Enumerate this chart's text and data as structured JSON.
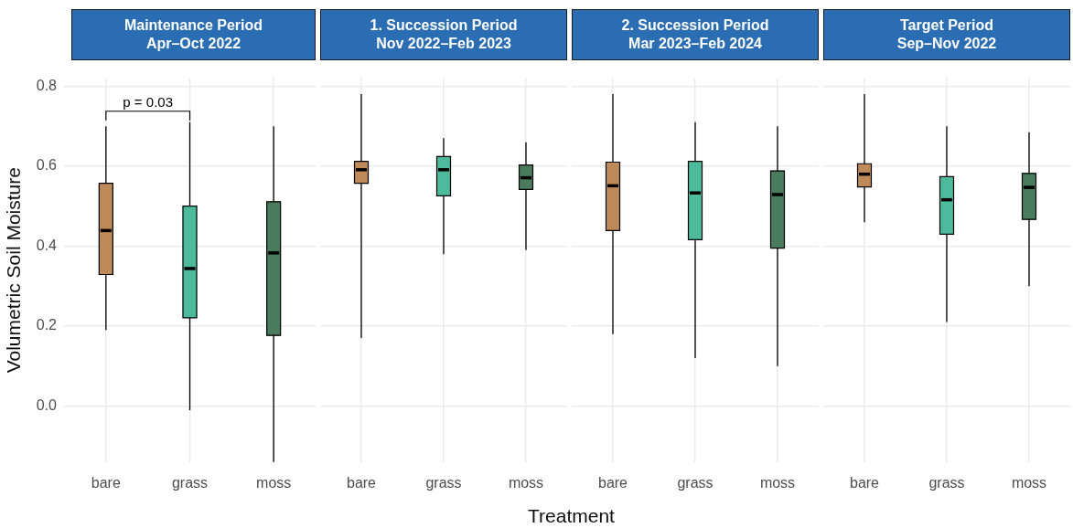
{
  "chart_data": [
    {
      "type": "box",
      "title": "Maintenance Period\nApr–Oct 2022",
      "ylabel": "Volumetric Soil Moisture",
      "categories": [
        "bare",
        "grass",
        "moss"
      ],
      "colors": [
        "#bf8a5a",
        "#4dbb9b",
        "#4a7b5d"
      ],
      "ylim": [
        -0.14,
        0.82
      ],
      "yticks": [
        {
          "value": 0,
          "label": "0.0"
        },
        0.2,
        0.4,
        0.6,
        0.8
      ],
      "grid": true,
      "annotations": [
        "p = 0.03"
      ],
      "boxes": [
        {
          "low": 0.19,
          "q1": 0.329,
          "median": 0.439,
          "q3": 0.557,
          "high": 0.7
        },
        {
          "low": -0.01,
          "q1": 0.221,
          "median": 0.344,
          "q3": 0.5,
          "high": 0.71
        },
        {
          "low": -0.14,
          "q1": 0.177,
          "median": 0.383,
          "q3": 0.511,
          "high": 0.7
        }
      ]
    },
    {
      "type": "box",
      "title": "1. Succession Period\nNov 2022–Feb 2023",
      "categories": [
        "bare",
        "grass",
        "moss"
      ],
      "colors": [
        "#bf8a5a",
        "#4dbb9b",
        "#4a7b5d"
      ],
      "ylim": [
        -0.14,
        0.82
      ],
      "yticks": [
        0.0,
        0.2,
        0.4,
        0.6,
        0.8
      ],
      "grid": true,
      "tick_labels": "x",
      "boxes": [
        {
          "low": 0.17,
          "q1": 0.557,
          "median": 0.591,
          "q3": 0.612,
          "high": 0.78
        },
        {
          "low": 0.38,
          "q1": 0.526,
          "median": 0.591,
          "q3": 0.624,
          "high": 0.67
        },
        {
          "low": 0.39,
          "q1": 0.542,
          "median": 0.571,
          "q3": 0.603,
          "high": 0.66
        }
      ]
    },
    {
      "type": "box",
      "title": "2. Succession Period\nMar 2023–Feb 2024",
      "xlabel": "Treatment",
      "categories": [
        "bare",
        "grass",
        "moss"
      ],
      "colors": [
        "#bf8a5a",
        "#4dbb9b",
        "#4a7b5d"
      ],
      "ylim": [
        -0.14,
        0.82
      ],
      "yticks": [
        0.0,
        0.2,
        0.4,
        0.6,
        0.8
      ],
      "grid": true,
      "tick_labels": "x",
      "boxes": [
        {
          "low": 0.18,
          "q1": 0.439,
          "median": 0.551,
          "q3": 0.61,
          "high": 0.78
        },
        {
          "low": 0.12,
          "q1": 0.416,
          "median": 0.533,
          "q3": 0.612,
          "high": 0.71
        },
        {
          "low": 0.1,
          "q1": 0.395,
          "median": 0.529,
          "q3": 0.588,
          "high": 0.7
        }
      ]
    },
    {
      "type": "box",
      "title": "Target Period\nSep–Nov 2022",
      "categories": [
        "bare",
        "grass",
        "moss"
      ],
      "colors": [
        "#bf8a5a",
        "#4dbb9b",
        "#4a7b5d"
      ],
      "ylim": [
        -0.14,
        0.82
      ],
      "yticks": [
        0.0,
        0.2,
        0.4,
        0.6,
        0.8
      ],
      "grid": true,
      "tick_labels": "x",
      "boxes": [
        {
          "low": 0.46,
          "q1": 0.548,
          "median": 0.58,
          "q3": 0.606,
          "high": 0.78
        },
        {
          "low": 0.21,
          "q1": 0.43,
          "median": 0.516,
          "q3": 0.574,
          "high": 0.7
        },
        {
          "low": 0.3,
          "q1": 0.467,
          "median": 0.547,
          "q3": 0.582,
          "high": 0.685
        }
      ]
    }
  ]
}
